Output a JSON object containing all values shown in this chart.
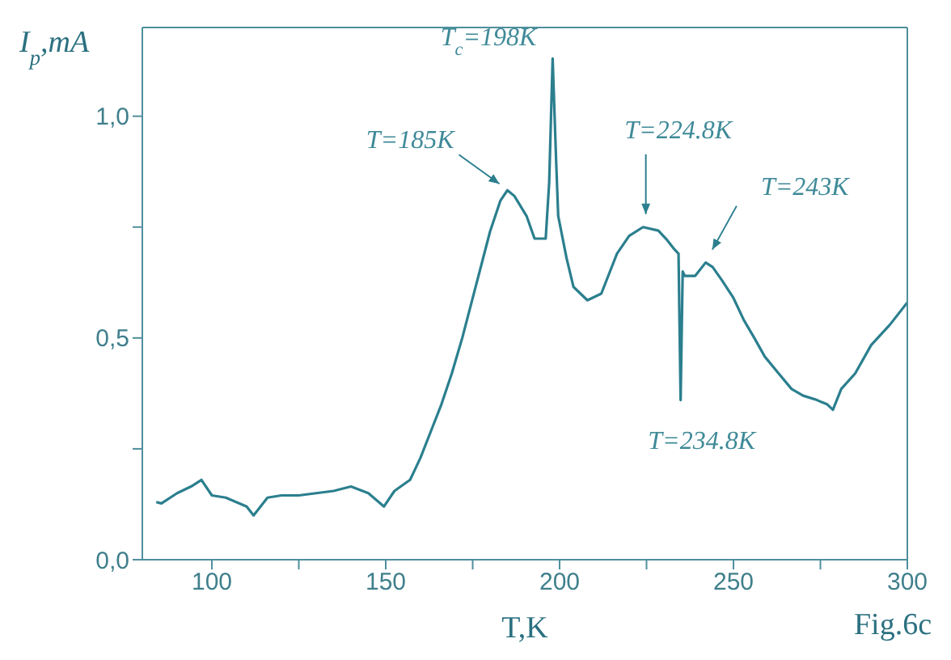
{
  "chart_data": {
    "type": "line",
    "xlabel": "T,K",
    "ylabel": "I$_{p}$,mA",
    "x": [
      84,
      85.5,
      90,
      94,
      97,
      100,
      104,
      107,
      110,
      112,
      114,
      116,
      120,
      125,
      130,
      135,
      140,
      145,
      149.5,
      152.5,
      157,
      160,
      163,
      166,
      169,
      172,
      176,
      180,
      183,
      185,
      187,
      190.5,
      192.8,
      196,
      197,
      198,
      199,
      199.6,
      202,
      204,
      208,
      212,
      216.5,
      220,
      224,
      228.4,
      231,
      233,
      234.2,
      234.8,
      235.4,
      236,
      239,
      242,
      244,
      246.7,
      250,
      253,
      256,
      259,
      263,
      266.7,
      270,
      274,
      277,
      278.6,
      281,
      285,
      289.6,
      295,
      300
    ],
    "series": [
      {
        "color": "#2b7f8e",
        "values": [
          0.13,
          0.127,
          0.15,
          0.165,
          0.18,
          0.145,
          0.14,
          0.13,
          0.12,
          0.1,
          0.12,
          0.14,
          0.145,
          0.145,
          0.15,
          0.155,
          0.165,
          0.15,
          0.12,
          0.155,
          0.18,
          0.23,
          0.29,
          0.35,
          0.42,
          0.5,
          0.62,
          0.74,
          0.81,
          0.833,
          0.82,
          0.775,
          0.724,
          0.724,
          0.85,
          1.13,
          0.9,
          0.775,
          0.68,
          0.615,
          0.585,
          0.6,
          0.69,
          0.73,
          0.75,
          0.742,
          0.72,
          0.7,
          0.69,
          0.36,
          0.65,
          0.64,
          0.64,
          0.67,
          0.66,
          0.63,
          0.59,
          0.54,
          0.5,
          0.458,
          0.42,
          0.385,
          0.37,
          0.36,
          0.35,
          0.338,
          0.385,
          0.42,
          0.484,
          0.53,
          0.58
        ]
      }
    ],
    "xlim": [
      80,
      300
    ],
    "xticks": [
      100,
      {
        "value": 125,
        "label": null
      },
      150,
      {
        "value": 175,
        "label": null
      },
      200,
      {
        "value": 225,
        "label": null
      },
      250,
      {
        "value": 275,
        "label": null
      },
      300
    ],
    "ylim": [
      0,
      1.2
    ],
    "yticks": [
      {
        "value": 0,
        "label": "0,0"
      },
      {
        "value": 0.25,
        "label": null
      },
      {
        "value": 0.5,
        "label": "0,5"
      },
      {
        "value": 0.75,
        "label": null
      },
      {
        "value": 1,
        "label": "1,0"
      }
    ],
    "grid": false,
    "legend": false,
    "marker": "none",
    "line_style": "solid",
    "annotations": [
      {
        "text": "T=185K",
        "x": 185,
        "y": 0.833
      },
      {
        "text": "T$_{c}$=198K",
        "x": 198,
        "y": 1.13
      },
      {
        "text": "T=224.8K",
        "x": 224.8,
        "y": 0.75
      },
      {
        "text": "T=243K",
        "x": 243,
        "y": 0.67
      },
      {
        "text": "T=234.8K",
        "x": 234.8,
        "y": 0.36
      },
      "Fig.6c"
    ]
  }
}
